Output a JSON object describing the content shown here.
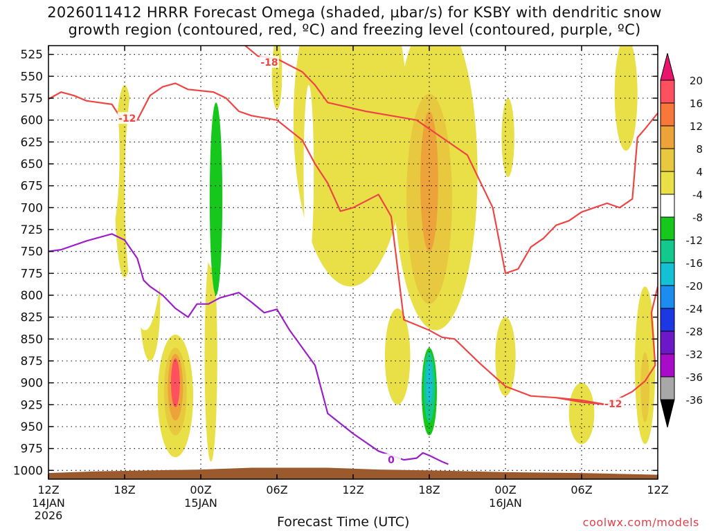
{
  "title_line1": "2026011412 HRRR Forecast Omega (shaded, µbar/s) for KSBY with dendritic snow",
  "title_line2": "growth region (contoured, red, ºC) and freezing level (contoured, purple, ºC)",
  "xlabel": "Forecast Time (UTC)",
  "credit": "coolwx.com/models",
  "colors": {
    "temp_contour": "#ee4444",
    "freezing_contour": "#9a1fc8",
    "terrain": "#9b5a2e",
    "grid": "#000000"
  },
  "chart_data": {
    "type": "time-height contour",
    "title": "2026011412 HRRR Forecast Omega (shaded, µbar/s) for KSBY with dendritic snow growth region (contoured, red, ºC) and freezing level (contoured, purple, ºC)",
    "xlabel": "Forecast Time (UTC)",
    "ylabel": "Pressure (hPa)",
    "x_range_hours": [
      0,
      48
    ],
    "y_range_hpa": [
      515,
      1010
    ],
    "y_ticks": [
      525,
      550,
      575,
      600,
      625,
      650,
      675,
      700,
      725,
      750,
      775,
      800,
      825,
      850,
      875,
      900,
      925,
      950,
      975,
      1000
    ],
    "x_ticks": [
      {
        "hour": 0,
        "label": "12Z",
        "sub1": "14JAN",
        "sub2": "2026"
      },
      {
        "hour": 6,
        "label": "18Z",
        "sub1": "",
        "sub2": ""
      },
      {
        "hour": 12,
        "label": "00Z",
        "sub1": "15JAN",
        "sub2": ""
      },
      {
        "hour": 18,
        "label": "06Z",
        "sub1": "",
        "sub2": ""
      },
      {
        "hour": 24,
        "label": "12Z",
        "sub1": "",
        "sub2": ""
      },
      {
        "hour": 30,
        "label": "18Z",
        "sub1": "",
        "sub2": ""
      },
      {
        "hour": 36,
        "label": "00Z",
        "sub1": "16JAN",
        "sub2": ""
      },
      {
        "hour": 42,
        "label": "06Z",
        "sub1": "",
        "sub2": ""
      },
      {
        "hour": 48,
        "label": "12Z",
        "sub1": "",
        "sub2": ""
      }
    ],
    "colorbar": {
      "labels": [
        "20",
        "16",
        "12",
        "8",
        "4",
        "-4",
        "-8",
        "-12",
        "-16",
        "-20",
        "-24",
        "-28",
        "-32",
        "-36"
      ],
      "colors": [
        "#ff5060",
        "#f7783a",
        "#eea23a",
        "#e8c83e",
        "#e8e046",
        "#ffffff",
        "#16c81c",
        "#12c88c",
        "#14c0d4",
        "#1c8cf0",
        "#1c38e4",
        "#6c18c8",
        "#a80cc8",
        "#a8a8a8"
      ],
      "top_color": "#e8146e",
      "bottom_color": "#000000"
    },
    "omega_areas": [
      {
        "level": 4,
        "hour": 6,
        "p": 670,
        "rh": 0.8,
        "rp": 110
      },
      {
        "level": 4,
        "hour": 8,
        "p": 810,
        "rh": 0.8,
        "rp": 65
      },
      {
        "level": 4,
        "hour": 10,
        "p": 915,
        "rh": 1.4,
        "rp": 70
      },
      {
        "level": 8,
        "hour": 10,
        "p": 910,
        "rh": 0.9,
        "rp": 50
      },
      {
        "level": 12,
        "hour": 10,
        "p": 905,
        "rh": 0.6,
        "rp": 38
      },
      {
        "level": 20,
        "hour": 10,
        "p": 900,
        "rh": 0.35,
        "rp": 28
      },
      {
        "level": 4,
        "hour": 12.8,
        "p": 870,
        "rh": 0.5,
        "rp": 120
      },
      {
        "level": 4,
        "hour": 18,
        "p": 548,
        "rh": 0.4,
        "rp": 40
      },
      {
        "level": 4,
        "hour": 23.8,
        "p": 600,
        "rh": 4.5,
        "rp": 190
      },
      {
        "level": 4,
        "hour": 30.5,
        "p": 660,
        "rh": 3.3,
        "rp": 180
      },
      {
        "level": 8,
        "hour": 30,
        "p": 690,
        "rh": 1.8,
        "rp": 120
      },
      {
        "level": 12,
        "hour": 30,
        "p": 670,
        "rh": 0.7,
        "rp": 80
      },
      {
        "level": 4,
        "hour": 27.5,
        "p": 870,
        "rh": 1.0,
        "rp": 55
      },
      {
        "level": 4,
        "hour": 36.2,
        "p": 620,
        "rh": 0.5,
        "rp": 45
      },
      {
        "level": 4,
        "hour": 36,
        "p": 870,
        "rh": 0.8,
        "rp": 45
      },
      {
        "level": 4,
        "hour": 42,
        "p": 935,
        "rh": 1.0,
        "rp": 35
      },
      {
        "level": 4,
        "hour": 45.5,
        "p": 570,
        "rh": 0.9,
        "rp": 65
      },
      {
        "level": 4,
        "hour": 47,
        "p": 880,
        "rh": 0.8,
        "rp": 90
      },
      {
        "level": 8,
        "hour": 47,
        "p": 905,
        "rh": 0.35,
        "rp": 40
      },
      {
        "level": -4,
        "hour": 1,
        "p": 740,
        "rh": 0.35,
        "rp": 170
      },
      {
        "level": -4,
        "hour": 4,
        "p": 640,
        "rh": 1.6,
        "rp": 120
      },
      {
        "level": -4,
        "hour": 7.6,
        "p": 680,
        "rh": 1.6,
        "rp": 160
      },
      {
        "level": -4,
        "hour": 10.7,
        "p": 620,
        "rh": 1.0,
        "rp": 120
      },
      {
        "level": -4,
        "hour": 13,
        "p": 640,
        "rh": 1.2,
        "rp": 130
      },
      {
        "level": -8,
        "hour": 13.2,
        "p": 690,
        "rh": 0.5,
        "rp": 110
      },
      {
        "level": -4,
        "hour": 16.2,
        "p": 880,
        "rh": 0.7,
        "rp": 55
      },
      {
        "level": -4,
        "hour": 18.2,
        "p": 720,
        "rh": 1.1,
        "rp": 130
      },
      {
        "level": -4,
        "hour": 20.5,
        "p": 660,
        "rh": 0.4,
        "rp": 100
      },
      {
        "level": -4,
        "hour": 30,
        "p": 910,
        "rh": 0.8,
        "rp": 65
      },
      {
        "level": -8,
        "hour": 30,
        "p": 910,
        "rh": 0.6,
        "rp": 50
      },
      {
        "level": -12,
        "hour": 30,
        "p": 905,
        "rh": 0.45,
        "rp": 40
      },
      {
        "level": -16,
        "hour": 30,
        "p": 900,
        "rh": 0.25,
        "rp": 25
      }
    ],
    "temp_contours": [
      {
        "label": "-12",
        "label_hour": 6.2,
        "label_p": 598,
        "points": [
          [
            0,
            576
          ],
          [
            1,
            568
          ],
          [
            2,
            572
          ],
          [
            3,
            578
          ],
          [
            5,
            582
          ],
          [
            5.8,
            600
          ],
          [
            7,
            600
          ],
          [
            8,
            572
          ],
          [
            9,
            562
          ],
          [
            10,
            558
          ],
          [
            11,
            565
          ],
          [
            13,
            568
          ],
          [
            14,
            575
          ],
          [
            15,
            590
          ],
          [
            16,
            595
          ],
          [
            18,
            600
          ],
          [
            20,
            623
          ],
          [
            21,
            650
          ],
          [
            22,
            672
          ],
          [
            23,
            704
          ],
          [
            24,
            700
          ],
          [
            26,
            685
          ],
          [
            27,
            710
          ],
          [
            28,
            828
          ],
          [
            30,
            840
          ],
          [
            31,
            848
          ],
          [
            32,
            850
          ],
          [
            34,
            878
          ],
          [
            36,
            904
          ],
          [
            38,
            915
          ],
          [
            40,
            917
          ],
          [
            42,
            922
          ],
          [
            44,
            925
          ],
          [
            46,
            910
          ],
          [
            47,
            898
          ],
          [
            47.8,
            880
          ],
          [
            47.5,
            820
          ],
          [
            48,
            790
          ]
        ]
      },
      {
        "label": "-12",
        "label_hour": 44.5,
        "label_p": 924,
        "points": [
          [
            40,
            917
          ],
          [
            42,
            920
          ],
          [
            44,
            925
          ]
        ]
      },
      {
        "label": "-18",
        "label_hour": 17.4,
        "label_p": 534,
        "points": [
          [
            15.5,
            515
          ],
          [
            16.5,
            527
          ],
          [
            18,
            530
          ],
          [
            20,
            545
          ],
          [
            21,
            560
          ],
          [
            22,
            580
          ],
          [
            25,
            590
          ],
          [
            27,
            595
          ],
          [
            29,
            600
          ],
          [
            31,
            620
          ],
          [
            33,
            640
          ],
          [
            35,
            700
          ],
          [
            36,
            775
          ],
          [
            37,
            770
          ],
          [
            38,
            745
          ],
          [
            39,
            735
          ],
          [
            40,
            720
          ],
          [
            41,
            715
          ],
          [
            42,
            705
          ],
          [
            43,
            700
          ],
          [
            44,
            695
          ],
          [
            45,
            700
          ],
          [
            46,
            690
          ],
          [
            46.4,
            620
          ],
          [
            47,
            610
          ],
          [
            48,
            592
          ]
        ]
      }
    ],
    "freezing_contour": {
      "label": "0",
      "label_hour": 27,
      "label_p": 988,
      "points": [
        [
          0,
          750
        ],
        [
          1,
          748
        ],
        [
          3,
          738
        ],
        [
          5,
          730
        ],
        [
          6,
          737
        ],
        [
          7,
          758
        ],
        [
          7.5,
          783
        ],
        [
          8,
          790
        ],
        [
          9,
          800
        ],
        [
          10,
          815
        ],
        [
          11,
          825
        ],
        [
          11.7,
          810
        ],
        [
          12.6,
          810
        ],
        [
          13.5,
          803
        ],
        [
          15,
          797
        ],
        [
          16,
          808
        ],
        [
          17,
          820
        ],
        [
          18,
          816
        ],
        [
          19,
          840
        ],
        [
          21,
          880
        ],
        [
          22,
          935
        ],
        [
          24,
          958
        ],
        [
          26,
          978
        ],
        [
          28,
          988
        ],
        [
          29,
          986
        ],
        [
          29.5,
          980
        ],
        [
          30,
          983
        ],
        [
          31,
          990
        ],
        [
          31.5,
          993
        ]
      ]
    }
  }
}
